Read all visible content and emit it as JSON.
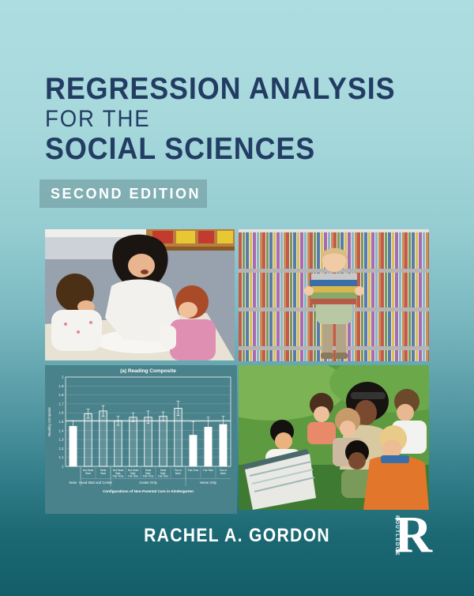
{
  "cover": {
    "title_line1": "REGRESSION ANALYSIS",
    "title_line2": "FOR THE",
    "title_line3": "SOCIAL SCIENCES",
    "edition_label": "SECOND EDITION",
    "author": "RACHEL A. GORDON",
    "publisher_logo_text": "ROUTLEDGE",
    "publisher_mark": "R",
    "colors": {
      "title_navy": "#233c63",
      "background_top": "#aedde1",
      "background_bottom": "#135e68",
      "edition_band": "rgba(74,104,109,0.32)",
      "chart_background": "#4a828b",
      "text_light": "#ffffff"
    }
  },
  "chart_data": {
    "type": "bar",
    "title": "(a) Reading Composite",
    "xlabel": "Configurations of Non-Parental Care in Kindergarten",
    "ylabel": "Reading Composite",
    "ylim": [
      1,
      2
    ],
    "ytick_step": 0.1,
    "grid": true,
    "legend": "none",
    "reference_line": 1.51,
    "categories": [
      "None",
      "Not Head Start",
      "Head Start",
      "Not Head Start, Part-Time",
      "Not Head Start, Full-Time",
      "Head Start, Part-Time",
      "Head Start, Full-Time",
      "Two or More",
      "Part-Time",
      "Full-Time",
      "Two or More"
    ],
    "values": [
      1.45,
      1.59,
      1.62,
      1.51,
      1.55,
      1.55,
      1.56,
      1.65,
      1.35,
      1.44,
      1.47
    ],
    "errors": [
      0.06,
      0.05,
      0.06,
      0.05,
      0.05,
      0.07,
      0.05,
      0.08,
      0.15,
      0.11,
      0.09
    ],
    "bar_styles": [
      "solid",
      "hollow",
      "hollow",
      "hollow",
      "hollow",
      "hollow",
      "hollow",
      "hollow",
      "solid",
      "solid",
      "solid"
    ],
    "groups": [
      {
        "label": "None",
        "from": 0,
        "to": 0
      },
      {
        "label": "Head Start and Center",
        "from": 1,
        "to": 2
      },
      {
        "label": "Center Only",
        "from": 3,
        "to": 7
      },
      {
        "label": "Home Only",
        "from": 8,
        "to": 10
      }
    ]
  }
}
